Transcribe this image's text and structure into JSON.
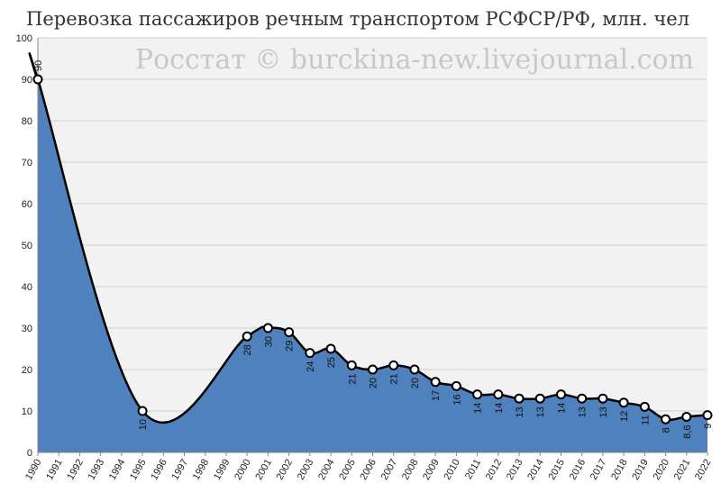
{
  "chart_data": {
    "type": "area",
    "title": "Перевозка пассажиров речным транспортом РСФСР/РФ, млн. чел",
    "watermark": "Росстат © burckina-new.livejournal.com",
    "ylim": [
      0,
      100
    ],
    "yticks": [
      "0",
      "10",
      "20",
      "30",
      "40",
      "50",
      "60",
      "70",
      "80",
      "90",
      "100"
    ],
    "categories": [
      "1990",
      "1991",
      "1992",
      "1993",
      "1994",
      "1995",
      "1996",
      "1997",
      "1998",
      "1999",
      "2000",
      "2001",
      "2002",
      "2003",
      "2004",
      "2005",
      "2006",
      "2007",
      "2008",
      "2009",
      "2010",
      "2011",
      "2012",
      "2013",
      "2014",
      "2015",
      "2016",
      "2017",
      "2018",
      "2019",
      "2020",
      "2021",
      "2022"
    ],
    "points": [
      {
        "year": "1990",
        "value": 90,
        "label": "90"
      },
      {
        "year": "1995",
        "value": 10,
        "label": "10"
      },
      {
        "year": "2000",
        "value": 28,
        "label": "28"
      },
      {
        "year": "2001",
        "value": 30,
        "label": "30"
      },
      {
        "year": "2002",
        "value": 29,
        "label": "29"
      },
      {
        "year": "2003",
        "value": 24,
        "label": "24"
      },
      {
        "year": "2004",
        "value": 25,
        "label": "25"
      },
      {
        "year": "2005",
        "value": 21,
        "label": "21"
      },
      {
        "year": "2006",
        "value": 20,
        "label": "20"
      },
      {
        "year": "2007",
        "value": 21,
        "label": "21"
      },
      {
        "year": "2008",
        "value": 20,
        "label": "20"
      },
      {
        "year": "2009",
        "value": 17,
        "label": "17"
      },
      {
        "year": "2010",
        "value": 16,
        "label": "16"
      },
      {
        "year": "2011",
        "value": 14,
        "label": "14"
      },
      {
        "year": "2012",
        "value": 14,
        "label": "14"
      },
      {
        "year": "2013",
        "value": 13,
        "label": "13"
      },
      {
        "year": "2014",
        "value": 13,
        "label": "13"
      },
      {
        "year": "2015",
        "value": 14,
        "label": "14"
      },
      {
        "year": "2016",
        "value": 13,
        "label": "13"
      },
      {
        "year": "2017",
        "value": 13,
        "label": "13"
      },
      {
        "year": "2018",
        "value": 12,
        "label": "12"
      },
      {
        "year": "2019",
        "value": 11,
        "label": "11"
      },
      {
        "year": "2020",
        "value": 8,
        "label": "8"
      },
      {
        "year": "2021",
        "value": 8.6,
        "label": "8,6"
      },
      {
        "year": "2022",
        "value": 9,
        "label": "9"
      }
    ],
    "grid": true,
    "legend": "none",
    "colors": {
      "fill": "#4f81bd",
      "line": "#000000",
      "marker_fill": "#ffffff",
      "plot_bg": "#f2f2f2",
      "grid": "#d0d0d0"
    }
  }
}
